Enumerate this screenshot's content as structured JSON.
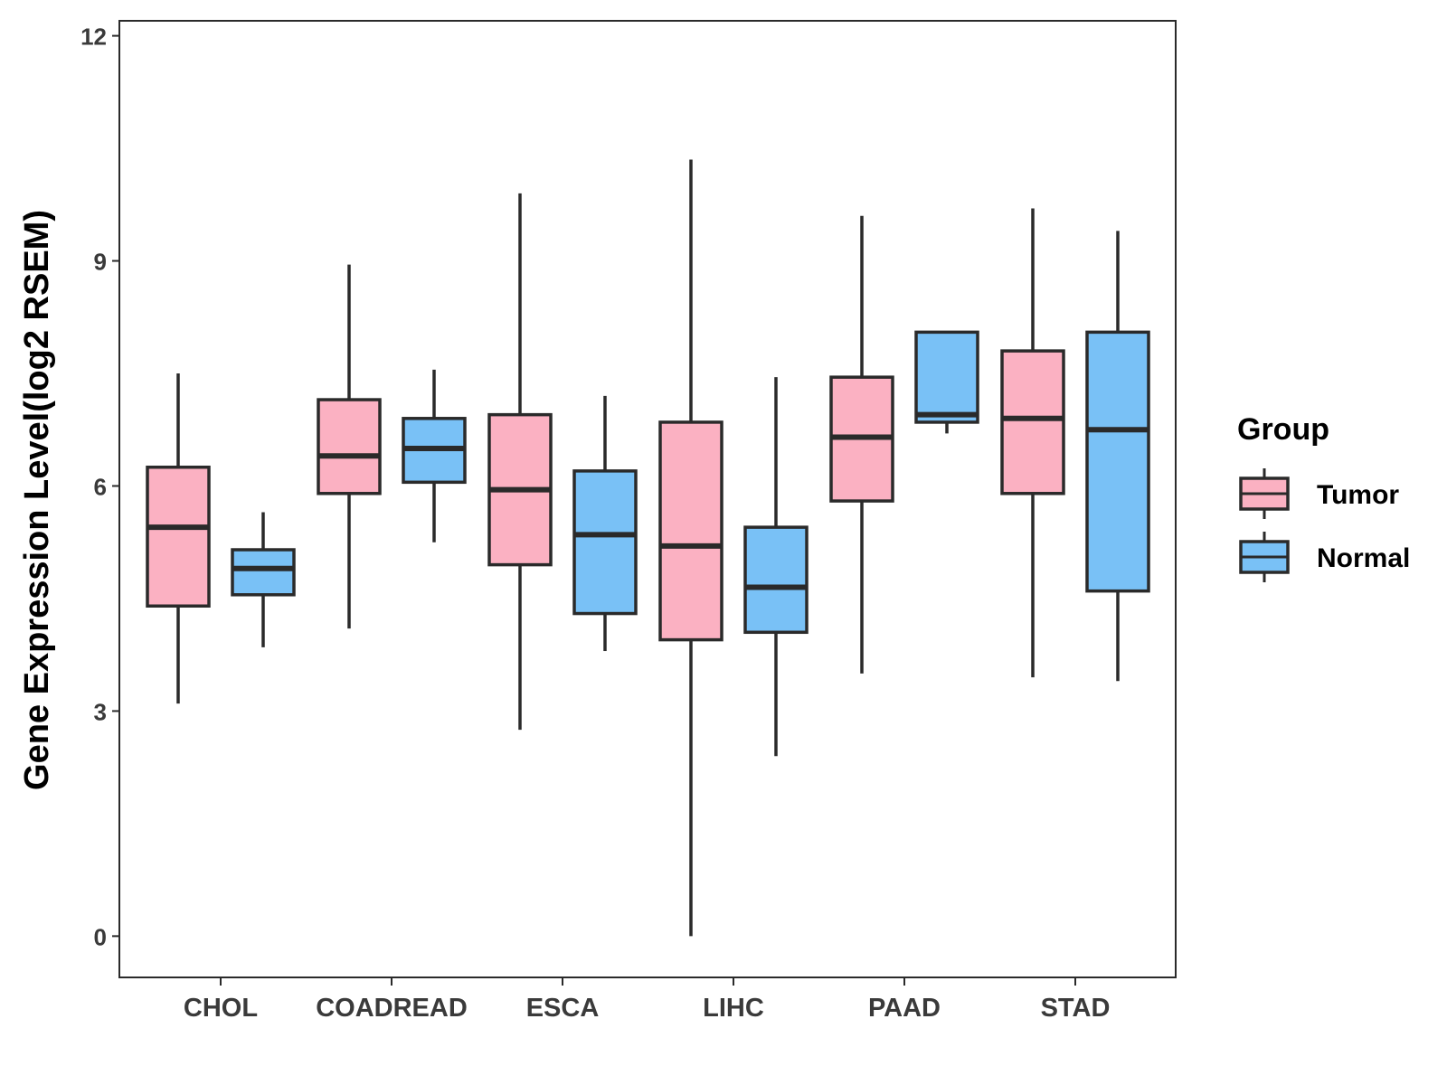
{
  "chart_data": {
    "type": "boxplot",
    "title": "",
    "xlabel": "",
    "ylabel": "Gene Expression Level(log2 RSEM)",
    "ylim": [
      -0.55,
      12.2
    ],
    "yticks": [
      0,
      3,
      6,
      9,
      12
    ],
    "categories": [
      "CHOL",
      "COADREAD",
      "ESCA",
      "LIHC",
      "PAAD",
      "STAD"
    ],
    "series": [
      {
        "name": "Tumor",
        "color": "#fbb1c2",
        "boxes": [
          {
            "whisker_low": 3.1,
            "q1": 4.4,
            "median": 5.45,
            "q3": 6.25,
            "whisker_high": 7.5
          },
          {
            "whisker_low": 4.1,
            "q1": 5.9,
            "median": 6.4,
            "q3": 7.15,
            "whisker_high": 8.95
          },
          {
            "whisker_low": 2.75,
            "q1": 4.95,
            "median": 5.95,
            "q3": 6.95,
            "whisker_high": 9.9
          },
          {
            "whisker_low": 0.0,
            "q1": 3.95,
            "median": 5.2,
            "q3": 6.85,
            "whisker_high": 10.35
          },
          {
            "whisker_low": 3.5,
            "q1": 5.8,
            "median": 6.65,
            "q3": 7.45,
            "whisker_high": 9.6
          },
          {
            "whisker_low": 3.45,
            "q1": 5.9,
            "median": 6.9,
            "q3": 7.8,
            "whisker_high": 9.7
          }
        ]
      },
      {
        "name": "Normal",
        "color": "#79c1f6",
        "boxes": [
          {
            "whisker_low": 3.85,
            "q1": 4.55,
            "median": 4.9,
            "q3": 5.15,
            "whisker_high": 5.65
          },
          {
            "whisker_low": 5.25,
            "q1": 6.05,
            "median": 6.5,
            "q3": 6.9,
            "whisker_high": 7.55
          },
          {
            "whisker_low": 3.8,
            "q1": 4.3,
            "median": 5.35,
            "q3": 6.2,
            "whisker_high": 7.2
          },
          {
            "whisker_low": 2.4,
            "q1": 4.05,
            "median": 4.65,
            "q3": 5.45,
            "whisker_high": 7.45
          },
          {
            "whisker_low": 6.7,
            "q1": 6.85,
            "median": 6.95,
            "q3": 8.05,
            "whisker_high": 8.05
          },
          {
            "whisker_low": 3.4,
            "q1": 4.6,
            "median": 6.75,
            "q3": 8.05,
            "whisker_high": 9.4
          }
        ]
      }
    ],
    "legend": {
      "title": "Group",
      "position": "right",
      "entries": [
        "Tumor",
        "Normal"
      ]
    },
    "grid": false,
    "box_edge_color": "#2a2a2a"
  }
}
